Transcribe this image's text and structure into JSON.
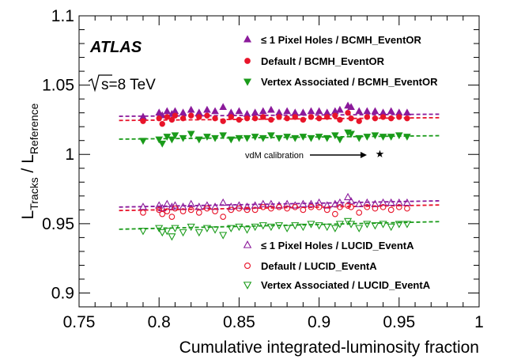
{
  "chart_data": {
    "type": "scatter",
    "xlabel": "Cumulative integrated-luminosity fraction",
    "ylabel_main": "L",
    "ylabel_sub1": "Tracks",
    "ylabel_sep": " / L",
    "ylabel_sub2": "Reference",
    "xlim": [
      0.75,
      1.0
    ],
    "ylim": [
      0.89,
      1.1
    ],
    "xticks": [
      0.75,
      0.8,
      0.85,
      0.9,
      0.95,
      1.0
    ],
    "xtick_labels": [
      "0.75",
      "0.8",
      "0.85",
      "0.9",
      "0.95",
      "1"
    ],
    "yticks": [
      0.9,
      0.95,
      1.0,
      1.05,
      1.1
    ],
    "ytick_labels": [
      "0.9",
      "0.95",
      "1",
      "1.05",
      "1.1"
    ],
    "experiment_label": "ATLAS",
    "energy_label": "s=8 TeV",
    "annotation": "vdM calibration",
    "annotation_marker": "★",
    "annotation_point": {
      "x": 0.938,
      "y": 1.0
    },
    "fit_x_range": [
      0.775,
      0.975
    ],
    "series": [
      {
        "name": "≤ 1 Pixel Holes / BCMH_EventOR",
        "marker": "triangle-up",
        "filled": true,
        "color": "#8b1a9b",
        "fit": [
          1.0275,
          1.029
        ],
        "x": [
          0.79,
          0.8,
          0.802,
          0.805,
          0.808,
          0.81,
          0.815,
          0.82,
          0.825,
          0.83,
          0.835,
          0.84,
          0.845,
          0.85,
          0.855,
          0.86,
          0.865,
          0.87,
          0.875,
          0.88,
          0.885,
          0.89,
          0.895,
          0.9,
          0.905,
          0.91,
          0.913,
          0.918,
          0.92,
          0.925,
          0.93,
          0.935,
          0.94,
          0.945,
          0.95,
          0.955
        ],
        "y": [
          1.027,
          1.03,
          1.028,
          1.031,
          1.029,
          1.031,
          1.03,
          1.032,
          1.03,
          1.032,
          1.031,
          1.034,
          1.03,
          1.031,
          1.029,
          1.03,
          1.031,
          1.032,
          1.03,
          1.031,
          1.03,
          1.03,
          1.031,
          1.031,
          1.03,
          1.031,
          1.032,
          1.035,
          1.034,
          1.031,
          1.031,
          1.031,
          1.03,
          1.031,
          1.03,
          1.03
        ]
      },
      {
        "name": "Default / BCMH_EventOR",
        "marker": "circle",
        "filled": true,
        "color": "#e8142a",
        "fit": [
          1.0245,
          1.0265
        ],
        "x": [
          0.79,
          0.8,
          0.802,
          0.805,
          0.808,
          0.81,
          0.815,
          0.82,
          0.825,
          0.83,
          0.835,
          0.84,
          0.845,
          0.85,
          0.855,
          0.86,
          0.865,
          0.87,
          0.875,
          0.88,
          0.885,
          0.89,
          0.895,
          0.9,
          0.905,
          0.91,
          0.913,
          0.918,
          0.92,
          0.925,
          0.93,
          0.935,
          0.94,
          0.945,
          0.95,
          0.955
        ],
        "y": [
          1.024,
          1.026,
          1.022,
          1.027,
          1.025,
          1.028,
          1.026,
          1.028,
          1.027,
          1.028,
          1.026,
          1.024,
          1.027,
          1.025,
          1.026,
          1.026,
          1.027,
          1.025,
          1.027,
          1.026,
          1.027,
          1.025,
          1.027,
          1.026,
          1.027,
          1.028,
          1.025,
          1.03,
          1.026,
          1.024,
          1.027,
          1.026,
          1.027,
          1.026,
          1.027,
          1.026
        ]
      },
      {
        "name": "Vertex Associated / BCMH_EventOR",
        "marker": "triangle-down",
        "filled": true,
        "color": "#1a9b1a",
        "fit": [
          1.011,
          1.0135
        ],
        "x": [
          0.79,
          0.8,
          0.802,
          0.805,
          0.808,
          0.81,
          0.815,
          0.82,
          0.825,
          0.83,
          0.835,
          0.84,
          0.845,
          0.85,
          0.855,
          0.86,
          0.865,
          0.87,
          0.875,
          0.88,
          0.885,
          0.89,
          0.895,
          0.9,
          0.905,
          0.91,
          0.913,
          0.918,
          0.92,
          0.925,
          0.93,
          0.935,
          0.94,
          0.945,
          0.95,
          0.955
        ],
        "y": [
          1.01,
          1.011,
          1.008,
          1.013,
          1.011,
          1.014,
          1.012,
          1.015,
          1.011,
          1.013,
          1.012,
          1.014,
          1.011,
          1.012,
          1.012,
          1.013,
          1.012,
          1.014,
          1.012,
          1.013,
          1.012,
          1.013,
          1.012,
          1.013,
          1.012,
          1.014,
          1.011,
          1.016,
          1.015,
          1.012,
          1.013,
          1.014,
          1.013,
          1.013,
          1.014,
          1.013
        ]
      },
      {
        "name": "≤ 1 Pixel Holes / LUCID_EventA",
        "marker": "triangle-up",
        "filled": false,
        "color": "#8b1a9b",
        "fit": [
          0.962,
          0.9665
        ],
        "x": [
          0.79,
          0.8,
          0.802,
          0.805,
          0.808,
          0.81,
          0.815,
          0.82,
          0.825,
          0.83,
          0.835,
          0.84,
          0.845,
          0.85,
          0.855,
          0.86,
          0.865,
          0.87,
          0.875,
          0.88,
          0.885,
          0.89,
          0.895,
          0.9,
          0.905,
          0.91,
          0.913,
          0.918,
          0.92,
          0.925,
          0.93,
          0.935,
          0.94,
          0.945,
          0.95,
          0.955
        ],
        "y": [
          0.962,
          0.963,
          0.961,
          0.964,
          0.962,
          0.963,
          0.962,
          0.964,
          0.962,
          0.963,
          0.962,
          0.965,
          0.962,
          0.963,
          0.962,
          0.963,
          0.964,
          0.964,
          0.963,
          0.964,
          0.963,
          0.964,
          0.964,
          0.965,
          0.963,
          0.964,
          0.965,
          0.969,
          0.966,
          0.964,
          0.965,
          0.964,
          0.965,
          0.965,
          0.965,
          0.965
        ]
      },
      {
        "name": "Default / LUCID_EventA",
        "marker": "circle",
        "filled": false,
        "color": "#e8142a",
        "fit": [
          0.9595,
          0.9635
        ],
        "x": [
          0.79,
          0.8,
          0.802,
          0.805,
          0.808,
          0.81,
          0.815,
          0.82,
          0.825,
          0.83,
          0.835,
          0.84,
          0.845,
          0.85,
          0.855,
          0.86,
          0.865,
          0.87,
          0.875,
          0.88,
          0.885,
          0.89,
          0.895,
          0.9,
          0.905,
          0.91,
          0.913,
          0.918,
          0.92,
          0.925,
          0.93,
          0.935,
          0.94,
          0.945,
          0.95,
          0.955
        ],
        "y": [
          0.958,
          0.96,
          0.957,
          0.959,
          0.955,
          0.961,
          0.959,
          0.96,
          0.958,
          0.961,
          0.959,
          0.955,
          0.96,
          0.961,
          0.96,
          0.96,
          0.962,
          0.961,
          0.962,
          0.961,
          0.962,
          0.96,
          0.962,
          0.962,
          0.96,
          0.957,
          0.962,
          0.963,
          0.962,
          0.958,
          0.962,
          0.961,
          0.962,
          0.96,
          0.962,
          0.961
        ]
      },
      {
        "name": "Vertex Associated / LUCID_EventA",
        "marker": "triangle-down",
        "filled": false,
        "color": "#1a9b1a",
        "fit": [
          0.946,
          0.9515
        ],
        "x": [
          0.79,
          0.8,
          0.802,
          0.805,
          0.808,
          0.81,
          0.815,
          0.82,
          0.825,
          0.83,
          0.835,
          0.84,
          0.845,
          0.85,
          0.855,
          0.86,
          0.865,
          0.87,
          0.875,
          0.88,
          0.885,
          0.89,
          0.895,
          0.9,
          0.905,
          0.91,
          0.913,
          0.918,
          0.92,
          0.925,
          0.93,
          0.935,
          0.94,
          0.945,
          0.95,
          0.955
        ],
        "y": [
          0.945,
          0.947,
          0.944,
          0.945,
          0.941,
          0.947,
          0.944,
          0.948,
          0.944,
          0.947,
          0.946,
          0.942,
          0.947,
          0.948,
          0.946,
          0.948,
          0.949,
          0.948,
          0.949,
          0.947,
          0.949,
          0.948,
          0.95,
          0.949,
          0.948,
          0.947,
          0.95,
          0.952,
          0.95,
          0.947,
          0.95,
          0.949,
          0.95,
          0.948,
          0.95,
          0.95
        ]
      }
    ]
  }
}
